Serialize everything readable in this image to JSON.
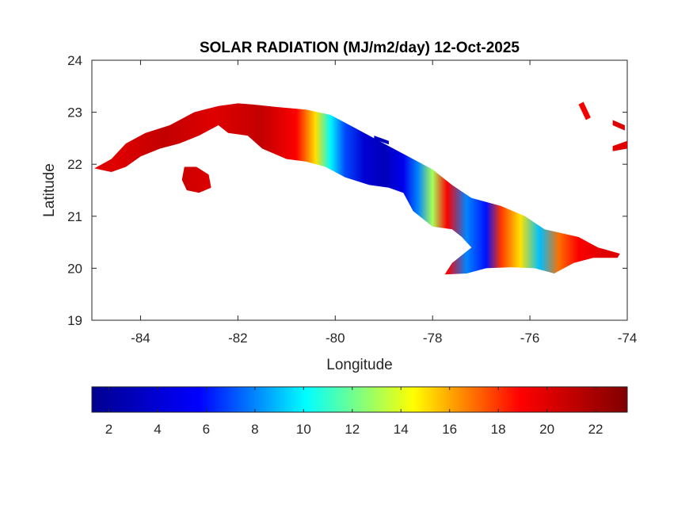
{
  "chart_data": {
    "type": "heatmap",
    "title": "SOLAR RADIATION (MJ/m2/day) 12-Oct-2025",
    "xlabel": "Longitude",
    "ylabel": "Latitude",
    "xlim": [
      -85,
      -74
    ],
    "ylim": [
      19,
      24
    ],
    "xticks": [
      -84,
      -82,
      -80,
      -78,
      -76,
      -74
    ],
    "yticks": [
      19,
      20,
      21,
      22,
      23,
      24
    ],
    "grid": false,
    "colormap": "jet",
    "colorbar": {
      "placement": "bottom",
      "range": [
        1.3,
        23.3
      ],
      "ticks": [
        2,
        4,
        6,
        8,
        10,
        12,
        14,
        16,
        18,
        20,
        22
      ],
      "colors": [
        "#00008f",
        "#0000ff",
        "#00ffff",
        "#ffff00",
        "#ff0000",
        "#800000"
      ]
    },
    "transects": [
      {
        "lon": -84.5,
        "value": 20
      },
      {
        "lon": -83.5,
        "value": 21
      },
      {
        "lon": -82.5,
        "value": 20
      },
      {
        "lon": -81.5,
        "value": 21
      },
      {
        "lon": -80.8,
        "value": 19
      },
      {
        "lon": -80.4,
        "value": 15
      },
      {
        "lon": -80.1,
        "value": 10
      },
      {
        "lon": -79.8,
        "value": 7
      },
      {
        "lon": -79.4,
        "value": 4
      },
      {
        "lon": -79.0,
        "value": 3
      },
      {
        "lon": -78.6,
        "value": 5
      },
      {
        "lon": -78.3,
        "value": 8
      },
      {
        "lon": -78.0,
        "value": 13
      },
      {
        "lon": -77.7,
        "value": 19
      },
      {
        "lon": -77.3,
        "value": 8
      },
      {
        "lon": -76.9,
        "value": 6
      },
      {
        "lon": -76.6,
        "value": 18
      },
      {
        "lon": -76.2,
        "value": 15
      },
      {
        "lon": -75.8,
        "value": 9
      },
      {
        "lon": -75.4,
        "value": 17
      },
      {
        "lon": -75.0,
        "value": 19
      },
      {
        "lon": -74.5,
        "value": 20
      }
    ],
    "landmasses": [
      {
        "name": "",
        "outline": [
          [
            -84.95,
            21.92
          ],
          [
            -84.6,
            21.85
          ],
          [
            -84.3,
            21.95
          ],
          [
            -84.0,
            22.15
          ],
          [
            -83.6,
            22.3
          ],
          [
            -83.2,
            22.4
          ],
          [
            -82.8,
            22.55
          ],
          [
            -82.4,
            22.75
          ],
          [
            -82.2,
            22.6
          ],
          [
            -81.8,
            22.55
          ],
          [
            -81.5,
            22.3
          ],
          [
            -81.0,
            22.1
          ],
          [
            -80.6,
            22.05
          ],
          [
            -80.2,
            21.95
          ],
          [
            -79.8,
            21.75
          ],
          [
            -79.3,
            21.6
          ],
          [
            -78.9,
            21.55
          ],
          [
            -78.6,
            21.45
          ],
          [
            -78.4,
            21.1
          ],
          [
            -78.0,
            20.8
          ],
          [
            -77.6,
            20.75
          ],
          [
            -77.4,
            20.6
          ],
          [
            -77.2,
            20.4
          ],
          [
            -77.6,
            20.1
          ],
          [
            -77.75,
            19.88
          ],
          [
            -77.3,
            19.9
          ],
          [
            -76.9,
            20.0
          ],
          [
            -76.4,
            20.02
          ],
          [
            -75.9,
            20.0
          ],
          [
            -75.5,
            19.9
          ],
          [
            -75.1,
            20.1
          ],
          [
            -74.7,
            20.2
          ],
          [
            -74.2,
            20.2
          ],
          [
            -74.15,
            20.28
          ],
          [
            -74.6,
            20.4
          ],
          [
            -75.0,
            20.6
          ],
          [
            -75.7,
            20.75
          ],
          [
            -76.1,
            21.0
          ],
          [
            -76.6,
            21.2
          ],
          [
            -77.2,
            21.35
          ],
          [
            -77.6,
            21.6
          ],
          [
            -78.0,
            21.9
          ],
          [
            -78.6,
            22.2
          ],
          [
            -79.1,
            22.45
          ],
          [
            -79.6,
            22.7
          ],
          [
            -80.1,
            22.95
          ],
          [
            -80.6,
            23.05
          ],
          [
            -81.2,
            23.1
          ],
          [
            -81.7,
            23.15
          ],
          [
            -82.0,
            23.17
          ],
          [
            -82.4,
            23.12
          ],
          [
            -82.9,
            23.0
          ],
          [
            -83.4,
            22.75
          ],
          [
            -83.9,
            22.6
          ],
          [
            -84.3,
            22.4
          ],
          [
            -84.6,
            22.1
          ],
          [
            -84.95,
            21.92
          ]
        ]
      },
      {
        "name": "",
        "outline": [
          [
            -83.1,
            21.95
          ],
          [
            -82.85,
            21.95
          ],
          [
            -82.6,
            21.8
          ],
          [
            -82.55,
            21.55
          ],
          [
            -82.8,
            21.45
          ],
          [
            -83.05,
            21.5
          ],
          [
            -83.15,
            21.7
          ],
          [
            -83.1,
            21.95
          ]
        ]
      },
      {
        "name": "",
        "outline": [
          [
            -75.0,
            23.15
          ],
          [
            -74.9,
            23.2
          ],
          [
            -74.75,
            22.9
          ],
          [
            -74.85,
            22.85
          ],
          [
            -75.0,
            23.15
          ]
        ]
      },
      {
        "name": "",
        "outline": [
          [
            -74.3,
            22.35
          ],
          [
            -74.0,
            22.45
          ],
          [
            -74.0,
            22.3
          ],
          [
            -74.3,
            22.25
          ],
          [
            -74.3,
            22.35
          ]
        ]
      },
      {
        "name": "",
        "outline": [
          [
            -74.3,
            22.85
          ],
          [
            -74.05,
            22.75
          ],
          [
            -74.05,
            22.65
          ],
          [
            -74.3,
            22.75
          ],
          [
            -74.3,
            22.85
          ]
        ]
      },
      {
        "name": "",
        "outline": [
          [
            -79.2,
            22.55
          ],
          [
            -78.9,
            22.45
          ],
          [
            -78.9,
            22.38
          ],
          [
            -79.2,
            22.48
          ],
          [
            -79.2,
            22.55
          ]
        ]
      }
    ]
  }
}
